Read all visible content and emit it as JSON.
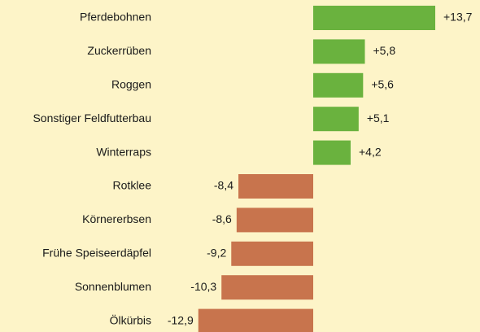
{
  "chart_data": {
    "type": "bar",
    "orientation": "horizontal",
    "categories": [
      "Pferdebohnen",
      "Zuckerrüben",
      "Roggen",
      "Sonstiger Feldfutterbau",
      "Winterraps",
      "Rotklee",
      "Körnererbsen",
      "Frühe Speiseerdäpfel",
      "Sonnenblumen",
      "Ölkürbis"
    ],
    "values": [
      13.7,
      5.8,
      5.6,
      5.1,
      4.2,
      -8.4,
      -8.6,
      -9.2,
      -10.3,
      -12.9
    ],
    "value_labels": [
      "+13,7",
      "+5,8",
      "+5,6",
      "+5,1",
      "+4,2",
      "-8,4",
      "-8,6",
      "-9,2",
      "-10,3",
      "-12,9"
    ],
    "positive_color": "#6ab23e",
    "negative_color": "#c8744d"
  }
}
